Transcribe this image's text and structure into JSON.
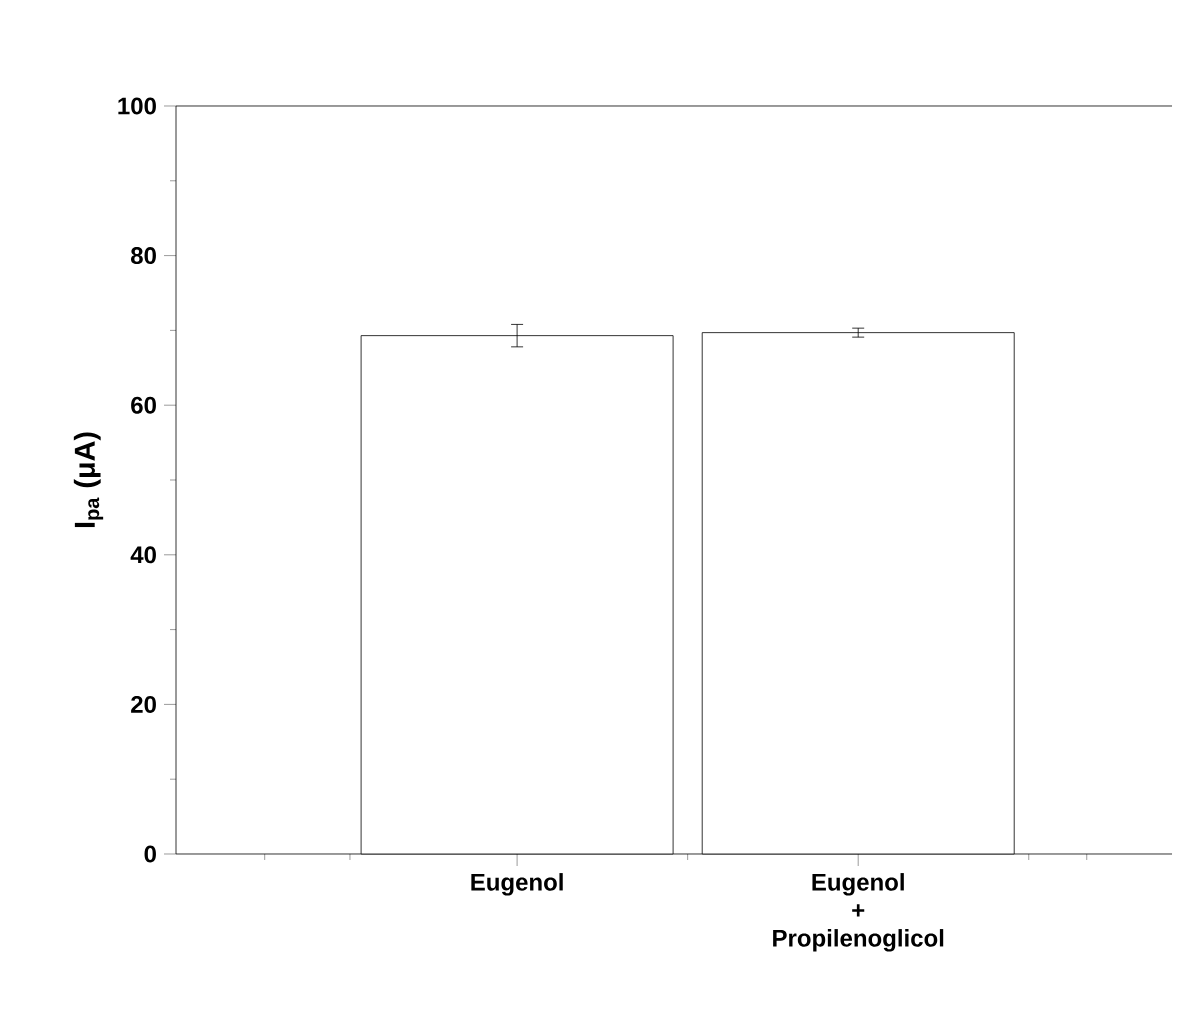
{
  "chart_data": {
    "type": "bar",
    "ylabel": "I$_{pa}$ (μA)",
    "categories": [
      "Eugenol",
      "Eugenol\n+\nPropilenoglicol"
    ],
    "values": [
      69.3,
      69.7
    ],
    "errors": [
      1.5,
      0.6
    ],
    "color": "#ffffff",
    "ylim": [
      0,
      100
    ],
    "yticks": [
      0,
      20,
      40,
      60,
      80,
      100
    ],
    "grid": false
  }
}
